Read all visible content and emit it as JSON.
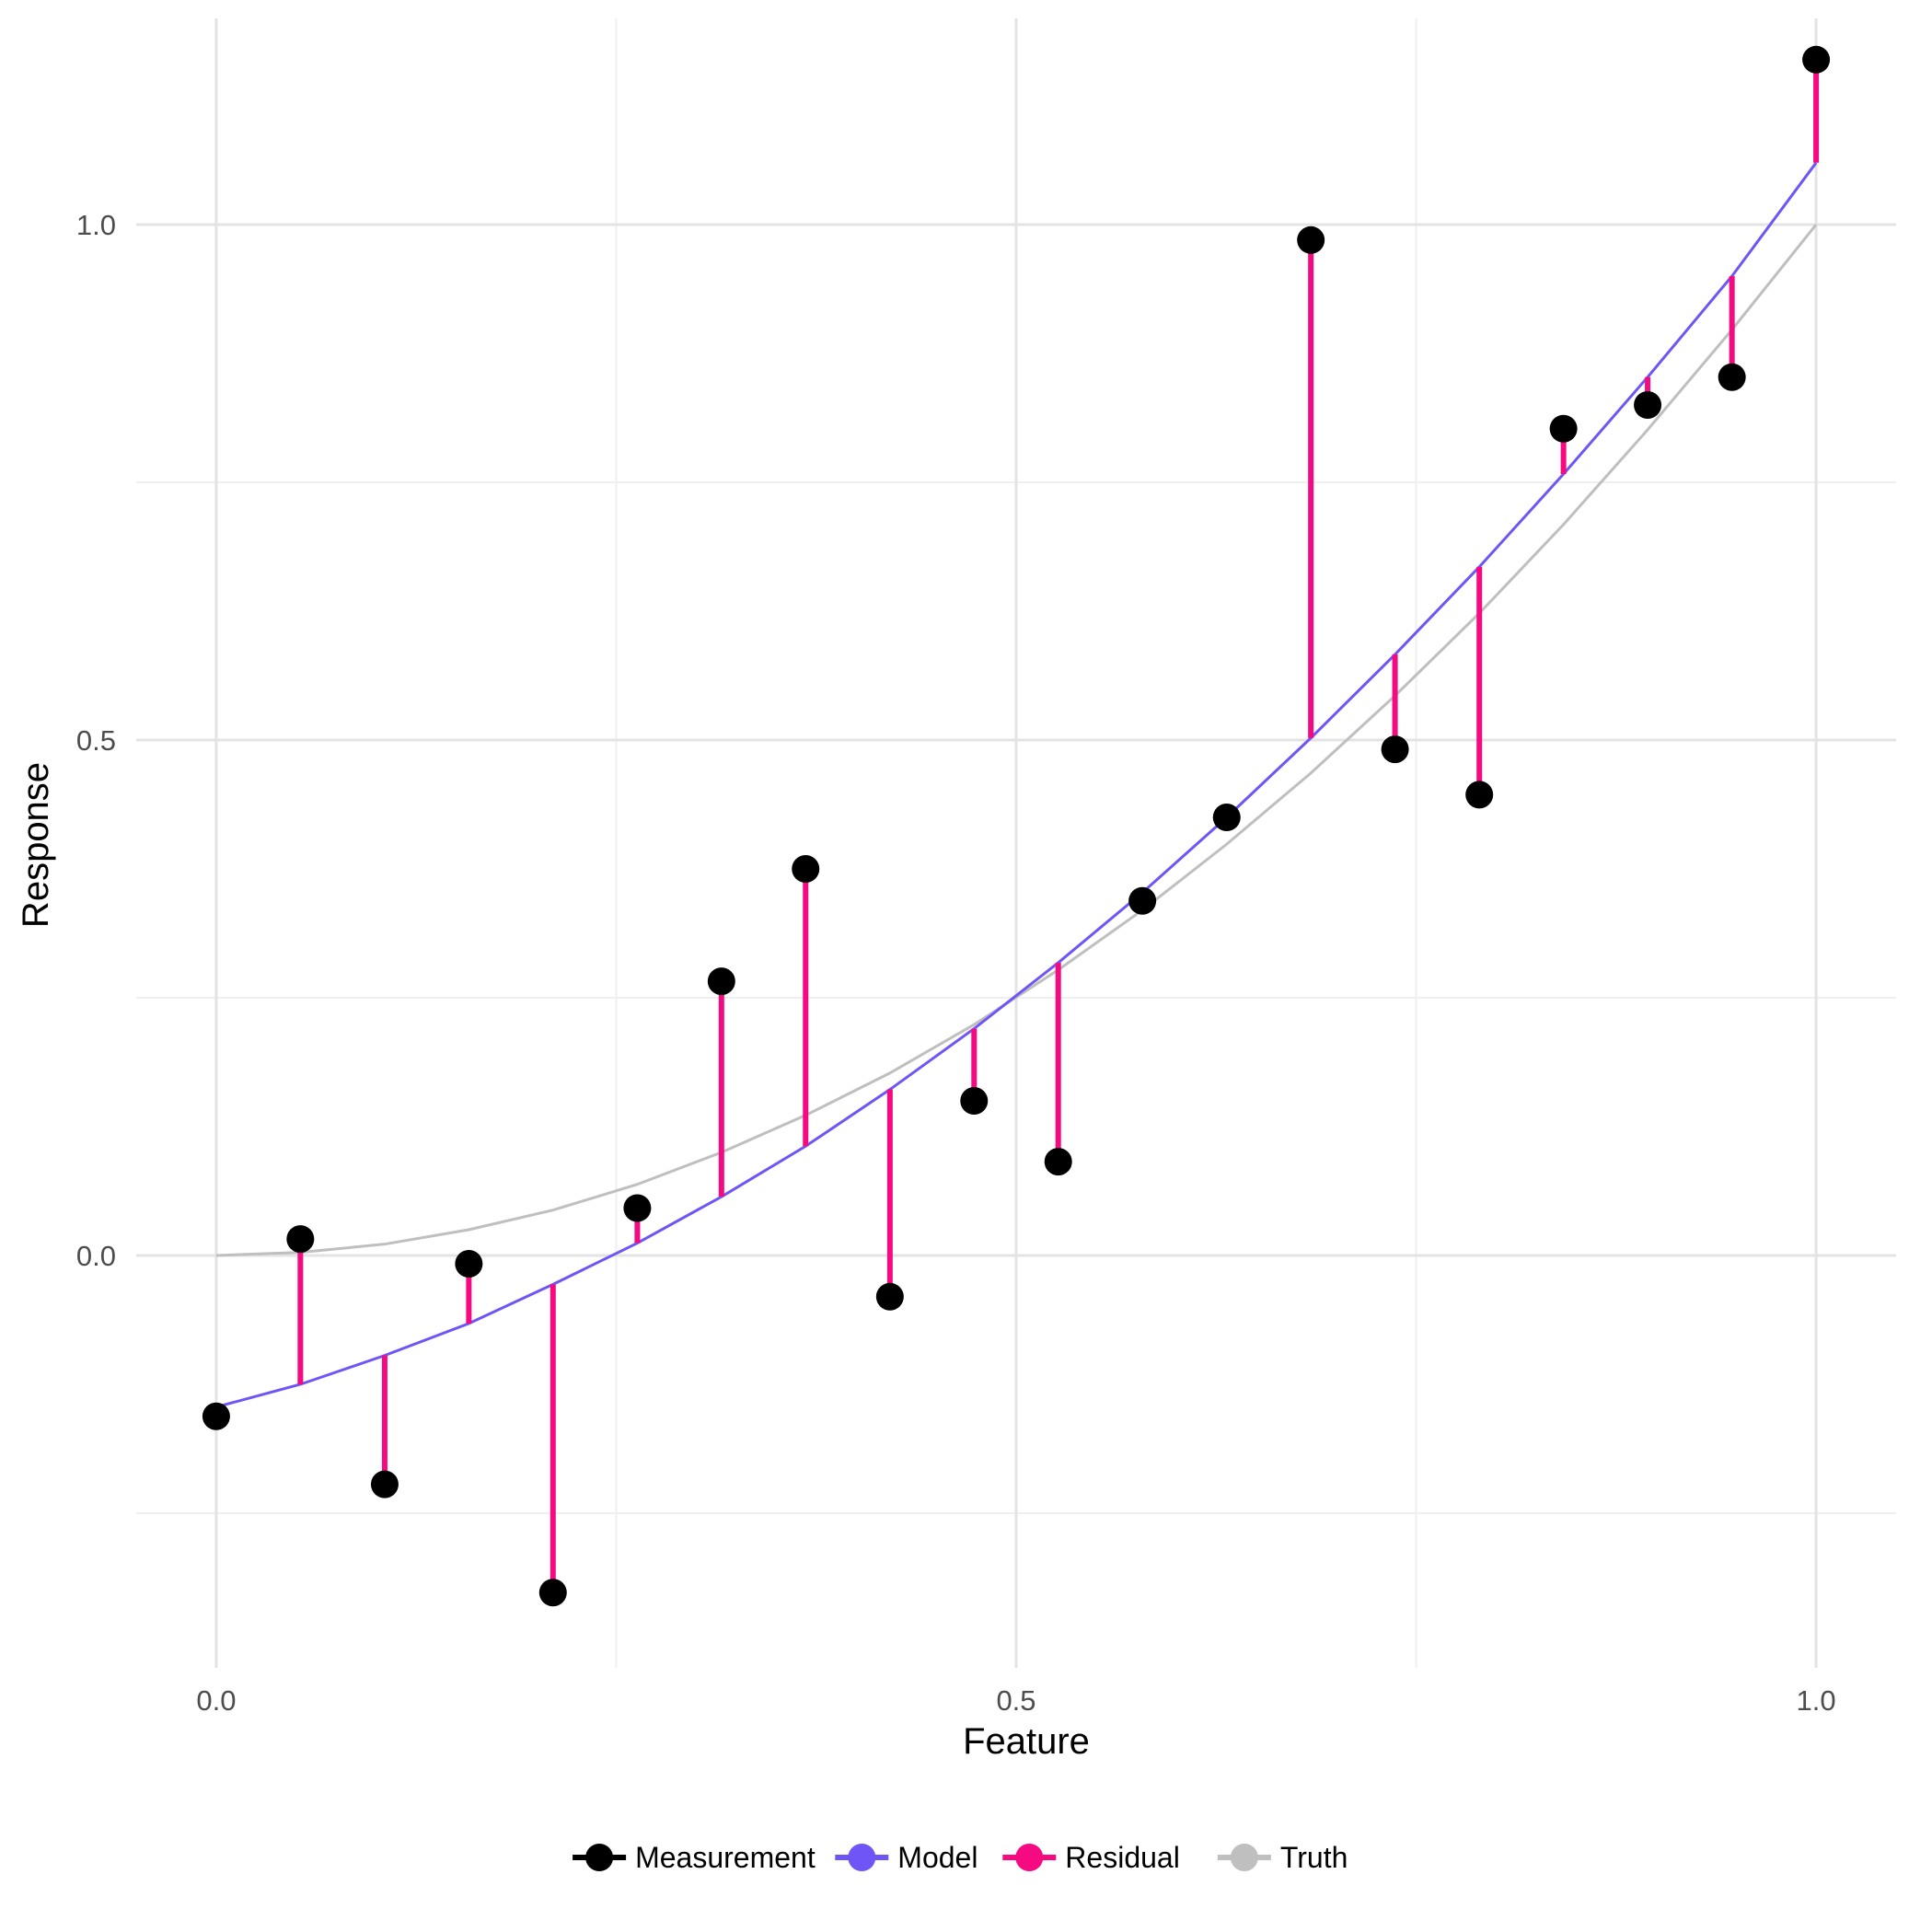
{
  "chart_data": {
    "type": "scatter",
    "title": "",
    "xlabel": "Feature",
    "ylabel": "Response",
    "xlim": [
      -0.05,
      1.05
    ],
    "ylim": [
      -0.4,
      1.2
    ],
    "x_ticks": [
      0.0,
      0.5,
      1.0
    ],
    "x_tick_labels": [
      "0.0",
      "0.5",
      "1.0"
    ],
    "y_ticks": [
      0.0,
      0.5,
      1.0
    ],
    "y_tick_labels": [
      "0.0",
      "0.5",
      "1.0"
    ],
    "x_minor_ticks": [
      0.25,
      0.75
    ],
    "y_minor_ticks": [
      -0.25,
      0.25,
      0.75
    ],
    "grid": true,
    "legend_position": "bottom",
    "legend": [
      {
        "name": "Measurement",
        "color": "#000000"
      },
      {
        "name": "Model",
        "color": "#6f55f5"
      },
      {
        "name": "Residual",
        "color": "#f60a82"
      },
      {
        "name": "Truth",
        "color": "#bfbfbf"
      }
    ],
    "series": [
      {
        "name": "Measurement",
        "kind": "points",
        "color": "#000000",
        "x": [
          0.0,
          0.0526,
          0.1053,
          0.1579,
          0.2105,
          0.2632,
          0.3158,
          0.3684,
          0.4211,
          0.4737,
          0.5263,
          0.5789,
          0.6316,
          0.6842,
          0.7368,
          0.7895,
          0.8421,
          0.8947,
          0.9474,
          1.0
        ],
        "y": [
          -0.156,
          0.016,
          -0.222,
          -0.008,
          -0.327,
          0.046,
          0.266,
          0.375,
          -0.04,
          0.15,
          0.091,
          0.344,
          0.425,
          0.985,
          0.491,
          0.447,
          0.802,
          0.825,
          0.852,
          1.16
        ]
      },
      {
        "name": "Model",
        "kind": "line",
        "color": "#6f55f5",
        "x": [
          0.0,
          0.0526,
          0.1053,
          0.1579,
          0.2105,
          0.2632,
          0.3158,
          0.3684,
          0.4211,
          0.4737,
          0.5263,
          0.5789,
          0.6316,
          0.6842,
          0.7368,
          0.7895,
          0.8421,
          0.8947,
          0.9474,
          1.0
        ],
        "y": [
          -0.147,
          -0.125,
          -0.097,
          -0.066,
          -0.028,
          0.012,
          0.057,
          0.106,
          0.161,
          0.22,
          0.284,
          0.352,
          0.425,
          0.502,
          0.583,
          0.668,
          0.758,
          0.852,
          0.95,
          1.06
        ]
      },
      {
        "name": "Truth",
        "kind": "line",
        "color": "#bfbfbf",
        "x": [
          0.0,
          0.0526,
          0.1053,
          0.1579,
          0.2105,
          0.2632,
          0.3158,
          0.3684,
          0.4211,
          0.4737,
          0.5263,
          0.5789,
          0.6316,
          0.6842,
          0.7368,
          0.7895,
          0.8421,
          0.8947,
          0.9474,
          1.0
        ],
        "y": [
          0.0,
          0.003,
          0.011,
          0.025,
          0.044,
          0.069,
          0.1,
          0.136,
          0.177,
          0.224,
          0.277,
          0.335,
          0.399,
          0.468,
          0.543,
          0.623,
          0.709,
          0.801,
          0.898,
          1.0
        ]
      }
    ],
    "residuals": {
      "name": "Residual",
      "color": "#f60a82",
      "description_of_segments": "vertical segment from Model value to Measurement value at each x"
    }
  }
}
